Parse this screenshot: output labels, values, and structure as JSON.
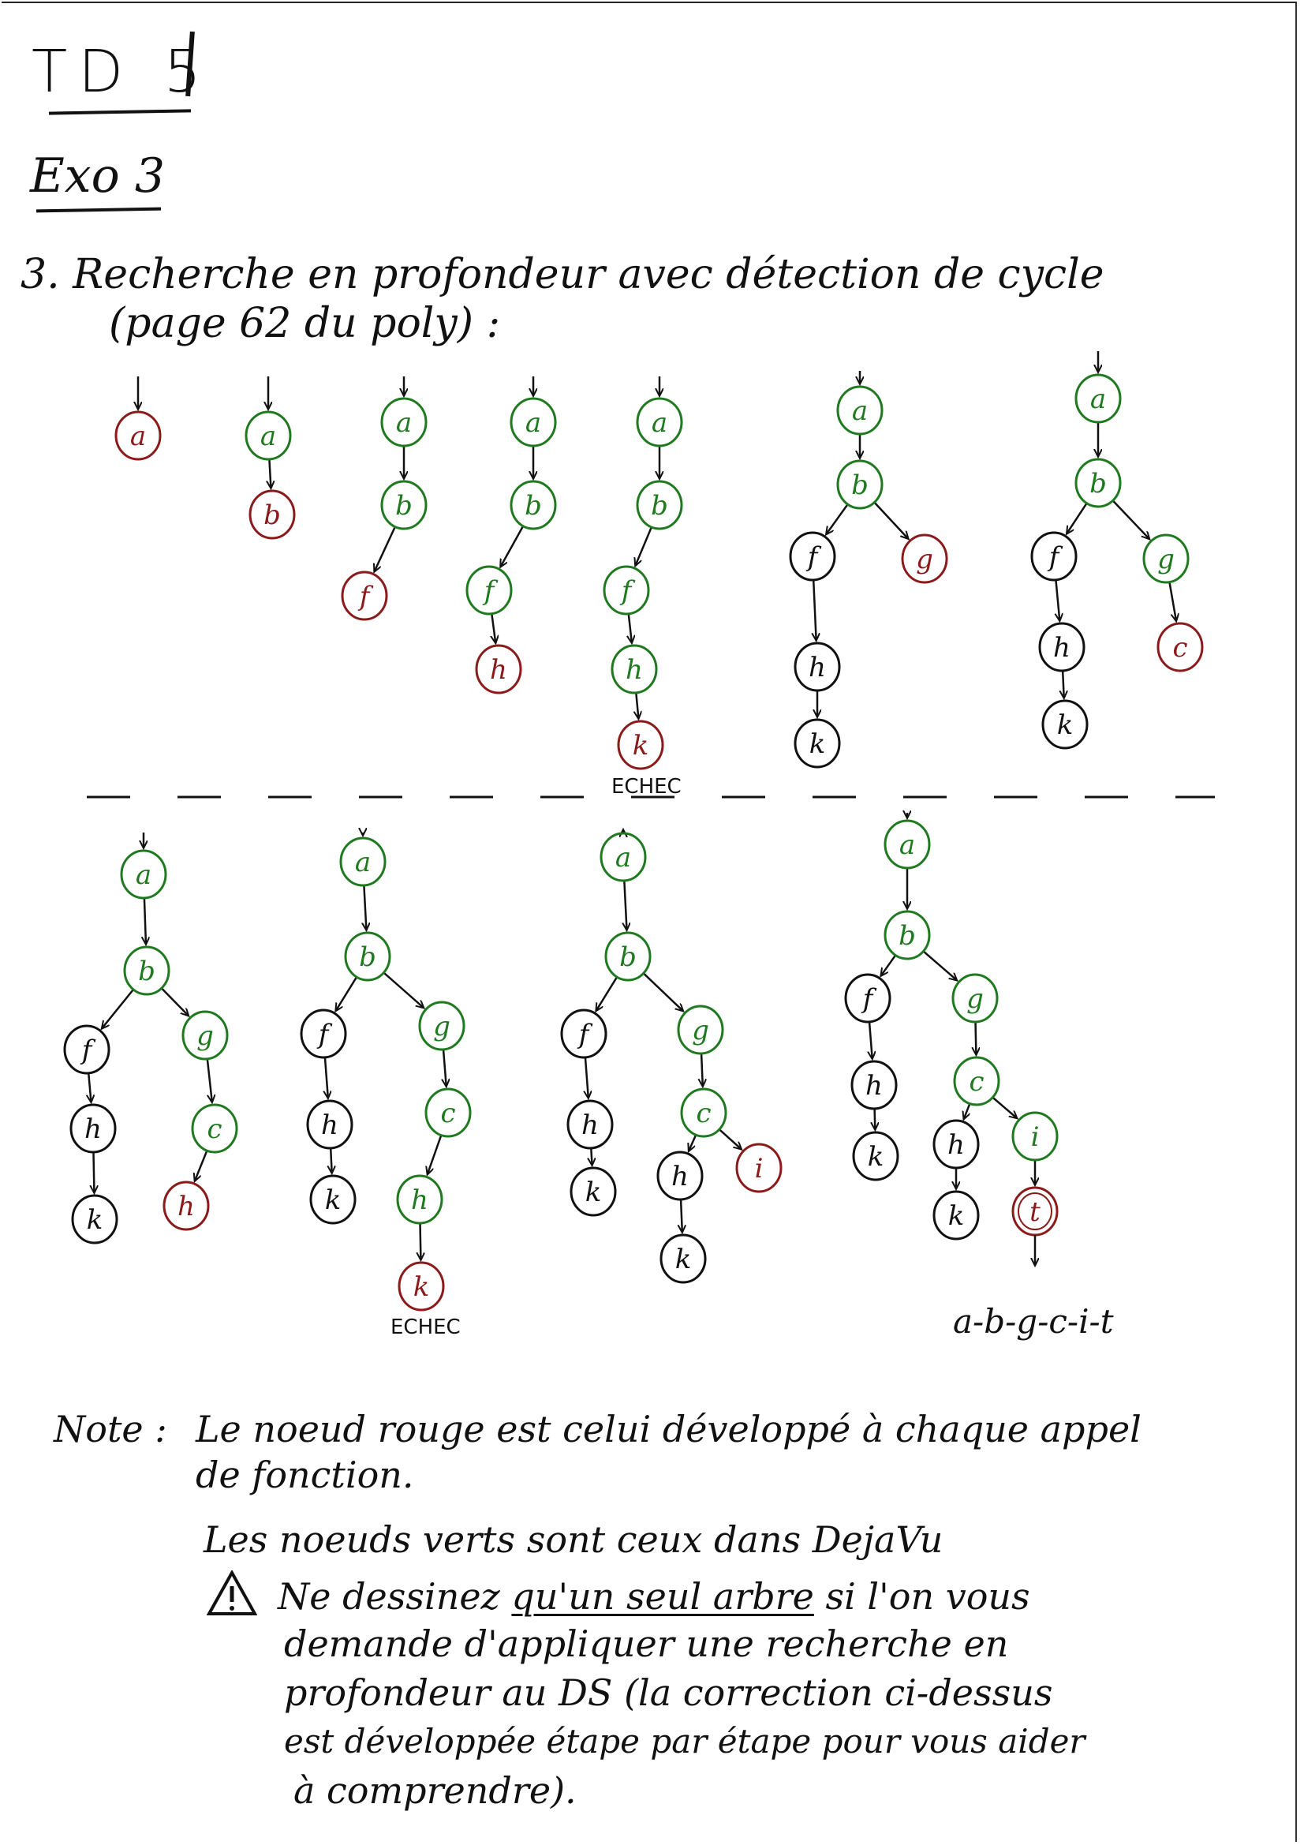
{
  "header": {
    "title": "TD 5",
    "exercise": "Exo 3"
  },
  "question": {
    "line1": "3. Recherche en profondeur avec détection de cycle",
    "line2": "(page 62 du poly) :"
  },
  "colors": {
    "red": "#8b1a1a",
    "green": "#1f7a1f",
    "black": "#111111"
  },
  "trees_row1": [
    {
      "nodes": [
        {
          "label": "a",
          "color": "red"
        }
      ]
    },
    {
      "nodes": [
        {
          "label": "a",
          "color": "green"
        },
        {
          "label": "b",
          "color": "red"
        }
      ]
    },
    {
      "nodes": [
        {
          "label": "a",
          "color": "green"
        },
        {
          "label": "b",
          "color": "green"
        },
        {
          "label": "f",
          "color": "red"
        }
      ]
    },
    {
      "nodes": [
        {
          "label": "a",
          "color": "green"
        },
        {
          "label": "b",
          "color": "green"
        },
        {
          "label": "f",
          "color": "green"
        },
        {
          "label": "h",
          "color": "red"
        }
      ]
    },
    {
      "nodes": [
        {
          "label": "a",
          "color": "green"
        },
        {
          "label": "b",
          "color": "green"
        },
        {
          "label": "f",
          "color": "green"
        },
        {
          "label": "h",
          "color": "green"
        },
        {
          "label": "k",
          "color": "red"
        }
      ],
      "note": "ECHEC"
    },
    {
      "nodes": [
        {
          "label": "a",
          "color": "green"
        },
        {
          "label": "b",
          "color": "green"
        },
        {
          "label": "f",
          "color": "black"
        },
        {
          "label": "g",
          "color": "red"
        },
        {
          "label": "h",
          "color": "black"
        },
        {
          "label": "k",
          "color": "black"
        }
      ]
    },
    {
      "nodes": [
        {
          "label": "a",
          "color": "green"
        },
        {
          "label": "b",
          "color": "green"
        },
        {
          "label": "f",
          "color": "black"
        },
        {
          "label": "g",
          "color": "green"
        },
        {
          "label": "h",
          "color": "black"
        },
        {
          "label": "c",
          "color": "red"
        },
        {
          "label": "k",
          "color": "black"
        }
      ]
    }
  ],
  "trees_row2": [
    {
      "nodes": [
        {
          "label": "a",
          "color": "green"
        },
        {
          "label": "b",
          "color": "green"
        },
        {
          "label": "f",
          "color": "black"
        },
        {
          "label": "g",
          "color": "green"
        },
        {
          "label": "h",
          "color": "black"
        },
        {
          "label": "c",
          "color": "green"
        },
        {
          "label": "k",
          "color": "black"
        },
        {
          "label": "h",
          "color": "red"
        }
      ]
    },
    {
      "nodes": [
        {
          "label": "a",
          "color": "green"
        },
        {
          "label": "b",
          "color": "green"
        },
        {
          "label": "f",
          "color": "black"
        },
        {
          "label": "g",
          "color": "green"
        },
        {
          "label": "h",
          "color": "black"
        },
        {
          "label": "c",
          "color": "green"
        },
        {
          "label": "k",
          "color": "black"
        },
        {
          "label": "h",
          "color": "green"
        },
        {
          "label": "k",
          "color": "red"
        }
      ],
      "note": "ECHEC"
    },
    {
      "nodes": [
        {
          "label": "a",
          "color": "green"
        },
        {
          "label": "b",
          "color": "green"
        },
        {
          "label": "f",
          "color": "black"
        },
        {
          "label": "g",
          "color": "green"
        },
        {
          "label": "h",
          "color": "black"
        },
        {
          "label": "c",
          "color": "green"
        },
        {
          "label": "k",
          "color": "black"
        },
        {
          "label": "h",
          "color": "black"
        },
        {
          "label": "i",
          "color": "red"
        },
        {
          "label": "k",
          "color": "black"
        }
      ]
    },
    {
      "nodes": [
        {
          "label": "a",
          "color": "green"
        },
        {
          "label": "b",
          "color": "green"
        },
        {
          "label": "f",
          "color": "black"
        },
        {
          "label": "g",
          "color": "green"
        },
        {
          "label": "h",
          "color": "black"
        },
        {
          "label": "c",
          "color": "green"
        },
        {
          "label": "k",
          "color": "black"
        },
        {
          "label": "h",
          "color": "black"
        },
        {
          "label": "i",
          "color": "green"
        },
        {
          "label": "k",
          "color": "black"
        },
        {
          "label": "t",
          "color": "red"
        }
      ]
    }
  ],
  "result_path": "a-b-g-c-i-t",
  "notes": {
    "prefix": "Note :",
    "line1": "Le noeud rouge est celui développé à chaque appel",
    "line2": "de fonction.",
    "line3": "Les noeuds verts sont ceux dans DejaVu",
    "warning_icon": "warning-triangle-icon",
    "warn_line1_a": "Ne dessinez",
    "warn_line1_u": "qu'un seul arbre",
    "warn_line1_b": "si l'on vous",
    "warn_line2": "demande d'appliquer une recherche en",
    "warn_line3": "profondeur au DS (la correction ci-dessus",
    "warn_line4": "est développée étape par étape pour vous aider",
    "warn_line5": "à comprendre)."
  }
}
